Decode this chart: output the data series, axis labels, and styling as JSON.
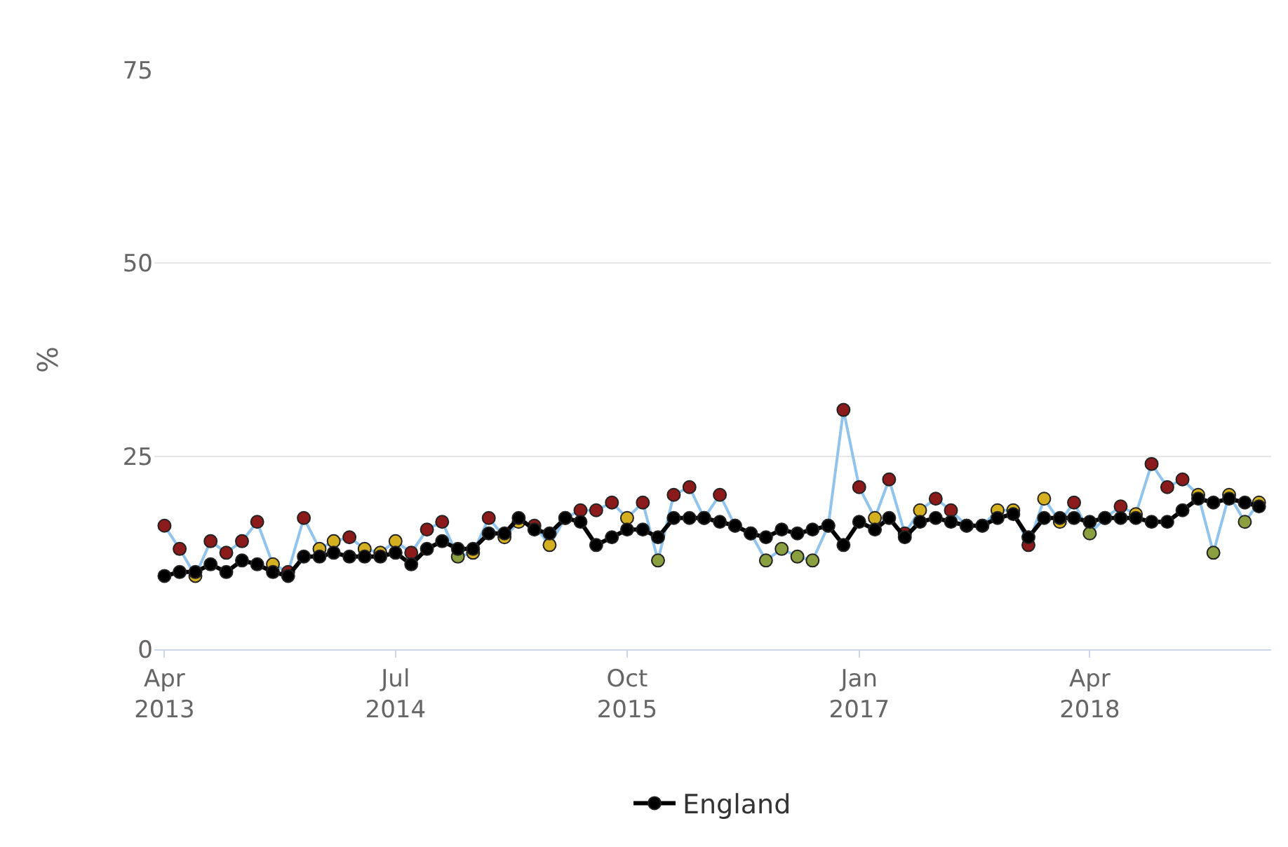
{
  "chart_data": {
    "type": "line",
    "ylabel": "%",
    "ylim": [
      0,
      75
    ],
    "yticks": [
      0,
      25,
      50,
      75
    ],
    "grid": "y",
    "legend": "bottom",
    "marker": "circle",
    "line_style": "solid",
    "xlim": [
      "2013-03-12",
      "2019-03-25"
    ],
    "xticks": [
      {
        "value": "2013-04",
        "label": "Apr 2013"
      },
      {
        "value": "2014-07",
        "label": "Jul 2014"
      },
      {
        "value": "2015-10",
        "label": "Oct 2015"
      },
      {
        "value": "2017-01",
        "label": "Jan 2017"
      },
      {
        "value": "2018-04",
        "label": "Apr 2018"
      }
    ],
    "x": [
      "2013-04",
      "2013-05",
      "2013-06",
      "2013-07",
      "2013-08",
      "2013-09",
      "2013-10",
      "2013-11",
      "2013-12",
      "2014-01",
      "2014-02",
      "2014-03",
      "2014-04",
      "2014-05",
      "2014-06",
      "2014-07",
      "2014-08",
      "2014-09",
      "2014-10",
      "2014-11",
      "2014-12",
      "2015-01",
      "2015-02",
      "2015-03",
      "2015-04",
      "2015-05",
      "2015-06",
      "2015-07",
      "2015-08",
      "2015-09",
      "2015-10",
      "2015-11",
      "2015-12",
      "2016-01",
      "2016-02",
      "2016-03",
      "2016-04",
      "2016-05",
      "2016-06",
      "2016-07",
      "2016-08",
      "2016-09",
      "2016-10",
      "2016-11",
      "2016-12",
      "2017-01",
      "2017-02",
      "2017-03",
      "2017-04",
      "2017-05",
      "2017-06",
      "2017-07",
      "2017-08",
      "2017-09",
      "2017-10",
      "2017-11",
      "2017-12",
      "2018-01",
      "2018-02",
      "2018-03",
      "2018-04",
      "2018-05",
      "2018-06",
      "2018-07",
      "2018-08",
      "2018-09",
      "2018-10",
      "2018-11",
      "2018-12",
      "2019-01",
      "2019-02",
      "2019-03"
    ],
    "series": [
      {
        "color": "#90c4ec",
        "values": [
          16,
          13,
          9.5,
          14,
          12.5,
          14,
          16.5,
          11,
          10,
          17,
          13,
          14,
          14.5,
          13,
          12.5,
          14,
          12.5,
          15.5,
          16.5,
          12,
          12.5,
          17,
          14.5,
          16.5,
          16,
          13.5,
          17,
          18,
          18,
          19,
          17,
          19,
          11.5,
          20,
          21,
          17,
          20,
          16,
          15,
          11.5,
          13,
          12,
          11.5,
          16,
          31,
          21,
          17,
          22,
          15,
          18,
          19.5,
          18,
          16,
          16,
          18,
          18,
          13.5,
          19.5,
          16.5,
          19,
          15,
          17,
          18.5,
          17.5,
          24,
          21,
          22,
          20,
          12.5,
          20,
          16.5,
          19
        ],
        "colors": [
          "#8b1a1a",
          "#8b1a1a",
          "#d4b020",
          "#8b1a1a",
          "#8b1a1a",
          "#8b1a1a",
          "#8b1a1a",
          "#d4b020",
          "#8b1a1a",
          "#8b1a1a",
          "#d4b020",
          "#d4b020",
          "#8b1a1a",
          "#d4b020",
          "#d4b020",
          "#d4b020",
          "#8b1a1a",
          "#8b1a1a",
          "#8b1a1a",
          "#8aa040",
          "#d4b020",
          "#8b1a1a",
          "#d4b020",
          "#d4b020",
          "#8b1a1a",
          "#d4b020",
          "#d4b020",
          "#8b1a1a",
          "#8b1a1a",
          "#8b1a1a",
          "#d4b020",
          "#8b1a1a",
          "#8aa040",
          "#8b1a1a",
          "#8b1a1a",
          "#d4b020",
          "#8b1a1a",
          "#d4b020",
          "#d4b020",
          "#8aa040",
          "#8aa040",
          "#8aa040",
          "#8aa040",
          "#8aa040",
          "#8b1a1a",
          "#8b1a1a",
          "#d4b020",
          "#8b1a1a",
          "#8b1a1a",
          "#d4b020",
          "#8b1a1a",
          "#8b1a1a",
          "#d4b020",
          "#d4b020",
          "#d4b020",
          "#d4b020",
          "#8b1a1a",
          "#d4b020",
          "#d4b020",
          "#8b1a1a",
          "#8aa040",
          "#d4b020",
          "#8b1a1a",
          "#d4b020",
          "#8b1a1a",
          "#8b1a1a",
          "#8b1a1a",
          "#d4b020",
          "#8aa040",
          "#d4b020",
          "#8aa040",
          "#d4b020"
        ]
      },
      {
        "name": "England",
        "color": "#000000",
        "values": [
          9.5,
          10,
          10,
          11,
          10,
          11.5,
          11,
          10,
          9.5,
          12,
          12,
          12.5,
          12,
          12,
          12,
          12.5,
          11,
          13,
          14,
          13,
          13,
          15,
          15,
          17,
          15.5,
          15,
          17,
          16.5,
          13.5,
          14.5,
          15.5,
          15.5,
          14.5,
          17,
          17,
          17,
          16.5,
          16,
          15,
          14.5,
          15.5,
          15,
          15.5,
          16,
          13.5,
          16.5,
          15.5,
          17,
          14.5,
          16.5,
          17,
          16.5,
          16,
          16,
          17,
          17.5,
          14.5,
          17,
          17,
          17,
          16.5,
          17,
          17,
          17,
          16.5,
          16.5,
          18,
          19.5,
          19,
          19.5,
          19,
          18.5
        ]
      }
    ]
  }
}
